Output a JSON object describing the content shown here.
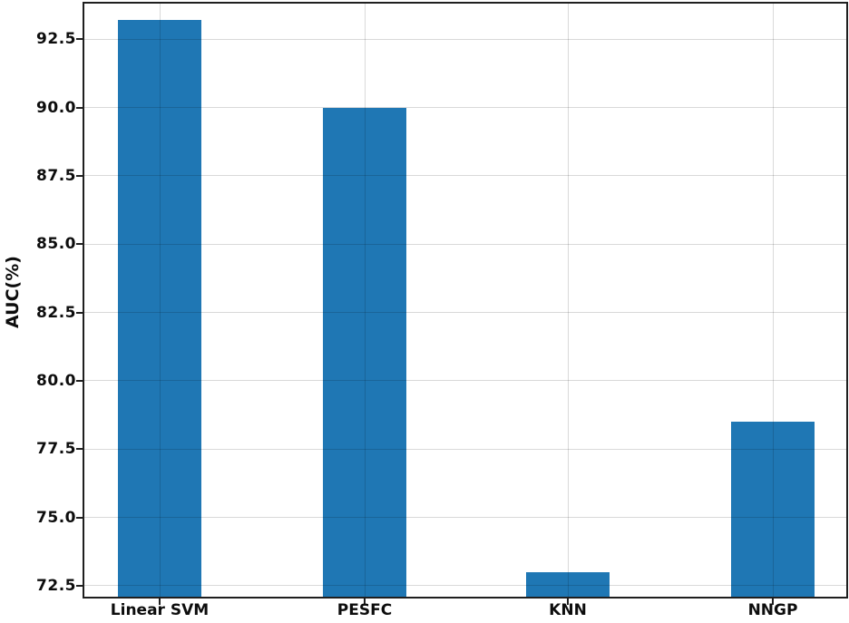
{
  "chart_data": {
    "type": "bar",
    "title": "",
    "xlabel": "",
    "ylabel": "AUC(%)",
    "categories": [
      "Linear SVM",
      "PESFC",
      "KNN",
      "NNGP"
    ],
    "values": [
      93.2,
      90.0,
      73.0,
      78.5
    ],
    "ylim": [
      72.1,
      93.8
    ],
    "yticks": [
      72.5,
      75.0,
      77.5,
      80.0,
      82.5,
      85.0,
      87.5,
      90.0,
      92.5
    ],
    "ytick_label_format_decimals": 1,
    "grid": true,
    "legend": false,
    "bar_color": "#1f77b4",
    "grid_color": "#d8d8d8",
    "spine_color": "#1f1f1f",
    "text_color": "#0d0d0d"
  }
}
